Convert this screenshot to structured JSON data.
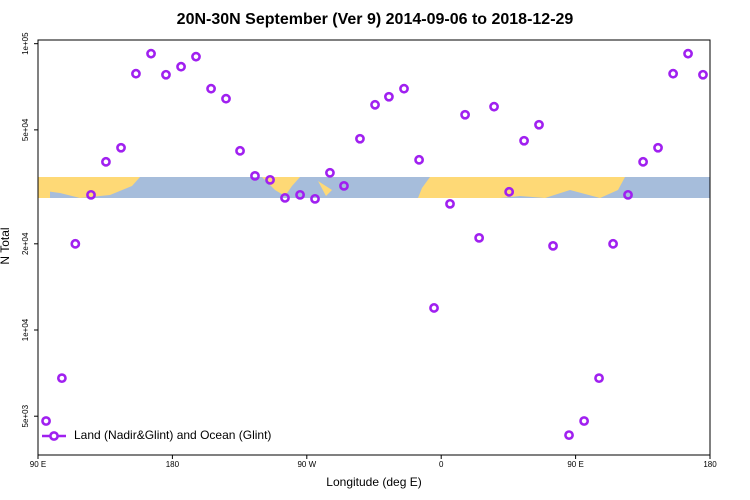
{
  "chart_data": {
    "type": "scatter",
    "title": "20N-30N September (Ver 9)   2014-09-06 to 2018-12-29",
    "x_label": "Longitude (deg E)",
    "y_label": "N Total",
    "ylog": true,
    "xlim": [
      90,
      540
    ],
    "xticks": [
      {
        "value": 90,
        "label": "90 E"
      },
      180,
      {
        "value": 270,
        "label": "90 W"
      },
      {
        "value": 360,
        "label": "0"
      },
      {
        "value": 450,
        "label": "90 E"
      },
      {
        "value": 540,
        "label": "180"
      }
    ],
    "ylim": [
      3660,
      103000
    ],
    "yticks": [
      {
        "value": 5000,
        "label": "5e+03"
      },
      {
        "value": 10000,
        "label": "1e+04"
      },
      {
        "value": 20000,
        "label": "2e+04"
      },
      {
        "value": 50000,
        "label": "5e+04"
      },
      {
        "value": 100000,
        "label": "1e+05"
      }
    ],
    "legend": "bottom-left",
    "series": [
      {
        "name": "Land (Nadir&Glint) and Ocean (Glint)",
        "color": "#a020f0",
        "x": [
          95.4,
          106,
          115,
          125.5,
          135.5,
          145.6,
          155.6,
          165.7,
          175.7,
          185.8,
          195.8,
          205.9,
          215.9,
          225.3,
          235.3,
          245.4,
          255.4,
          265.5,
          275.5,
          285.5,
          294.9,
          305.6,
          315.7,
          325,
          335.1,
          345.2,
          355.2,
          365.9,
          376,
          385.4,
          395.4,
          405.5,
          415.5,
          425.5,
          434.9,
          445.6,
          455.7,
          465.7,
          475.1,
          485.1,
          495.2,
          505.2,
          515.3,
          525.3,
          535.3
        ],
        "values": [
          4810,
          6790,
          20000,
          29650,
          38670,
          43300,
          78550,
          92270,
          77900,
          83100,
          90070,
          69630,
          64250,
          42250,
          34540,
          33450,
          28930,
          29650,
          28710,
          35400,
          31870,
          46550,
          61170,
          65260,
          69630,
          39300,
          11940,
          27580,
          56460,
          20980,
          60250,
          30380,
          45810,
          52100,
          19670,
          4295,
          4810,
          6790,
          20000,
          29650,
          38670,
          43300,
          78550,
          92270,
          77900
        ]
      }
    ]
  }
}
